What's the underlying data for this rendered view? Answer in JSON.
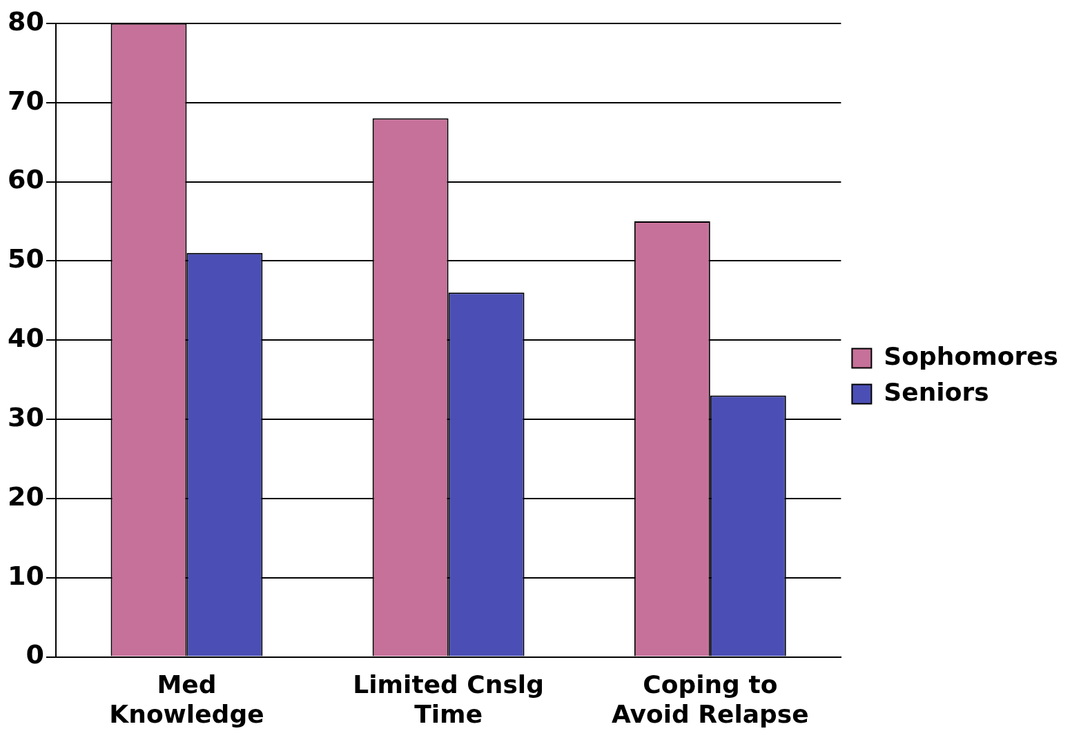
{
  "chart_data": {
    "type": "bar",
    "categories": [
      "Med Knowledge",
      "Limited Cnslg Time",
      "Coping to Avoid Relapse"
    ],
    "series": [
      {
        "name": "Sophomores",
        "color": "#c67199",
        "values": [
          80,
          68,
          55
        ]
      },
      {
        "name": "Seniors",
        "color": "#4b4fb5",
        "values": [
          51,
          46,
          33
        ]
      }
    ],
    "ylim": [
      0,
      80
    ],
    "yticks": [
      0,
      10,
      20,
      30,
      40,
      50,
      60,
      70,
      80
    ],
    "grid": "y",
    "legend": "right"
  }
}
